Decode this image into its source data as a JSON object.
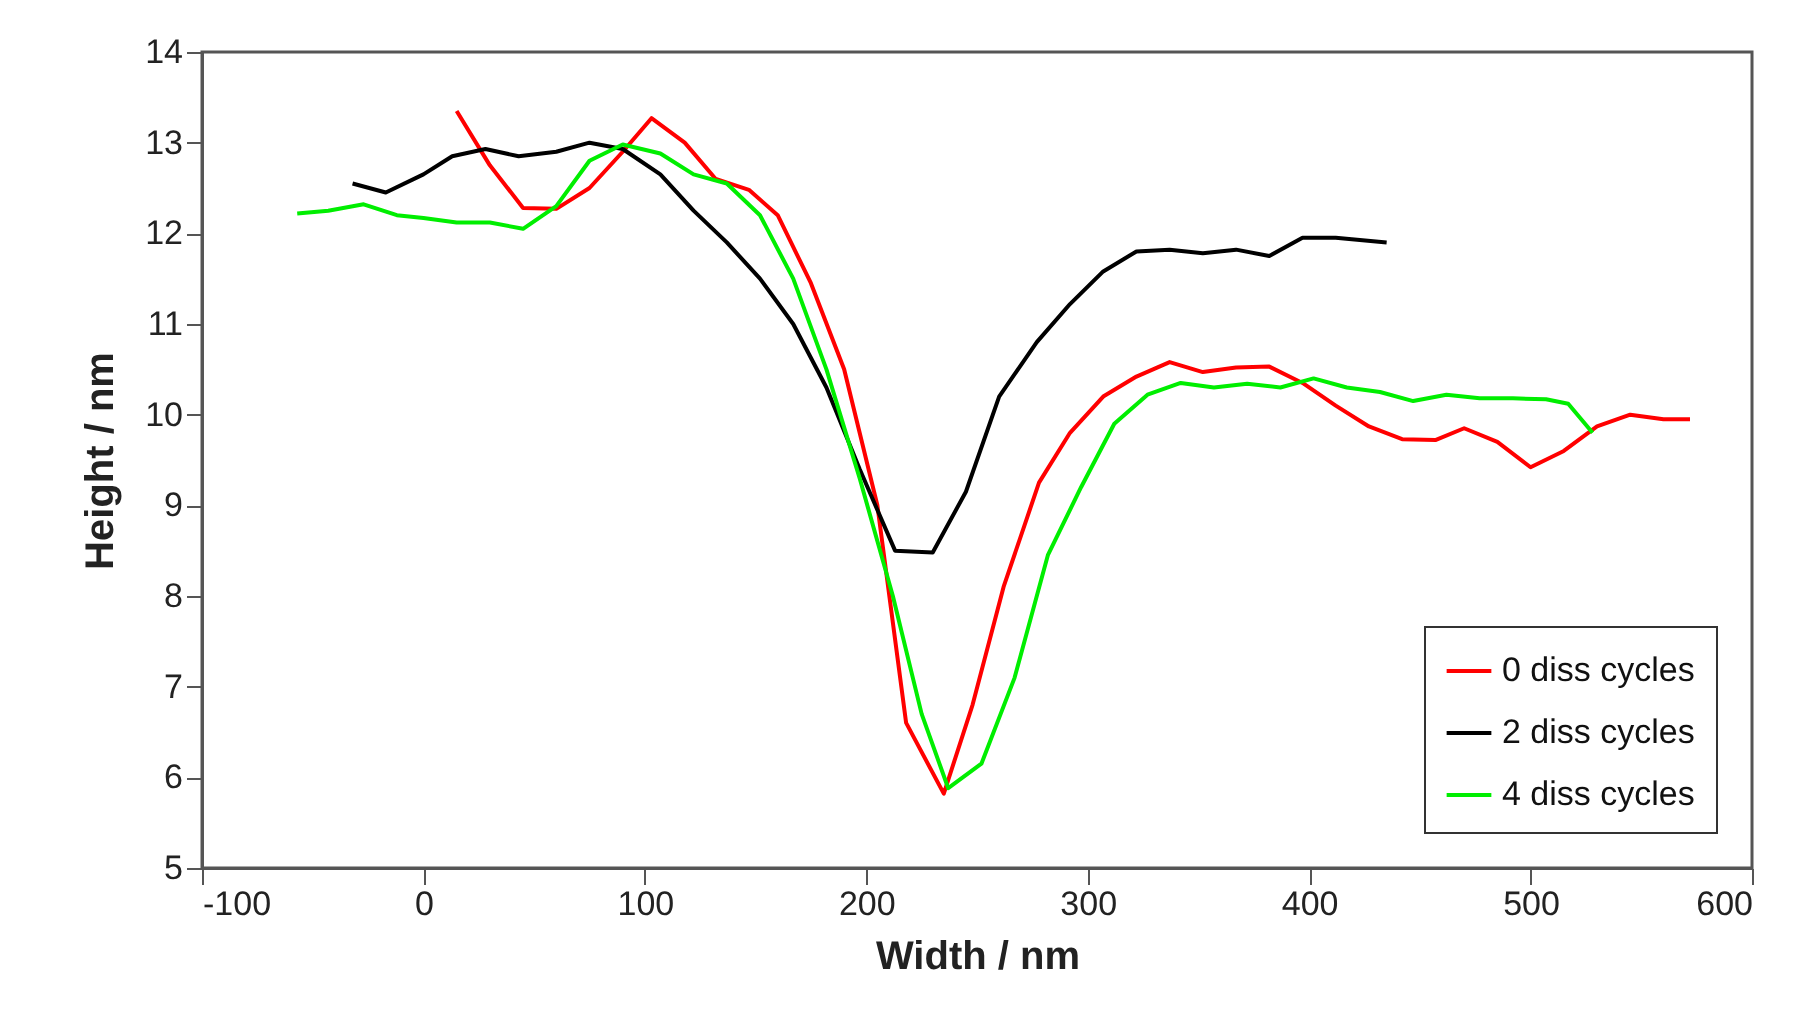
{
  "chart_data": {
    "type": "line",
    "xlabel": "Width / nm",
    "ylabel": "Height / nm",
    "xlim": [
      -100,
      600
    ],
    "xticks": [
      -100,
      0,
      100,
      200,
      300,
      400,
      500,
      600
    ],
    "ylim": [
      5,
      14
    ],
    "yticks": [
      5,
      6,
      7,
      8,
      9,
      10,
      11,
      12,
      13,
      14
    ],
    "grid": false,
    "legend": "bottom right",
    "marker": "none",
    "line_style": "solid",
    "series": [
      {
        "name": "0 diss cycles",
        "color": "#ff0000",
        "x": [
          15,
          30,
          45,
          60,
          75,
          90,
          103,
          118,
          132,
          147,
          160,
          175,
          190,
          205,
          218,
          235,
          248,
          262,
          278,
          292,
          307,
          322,
          337,
          352,
          367,
          382,
          397,
          412,
          427,
          442,
          457,
          470,
          485,
          500,
          515,
          530,
          545,
          560,
          572
        ],
        "values": [
          13.35,
          12.75,
          12.28,
          12.27,
          12.5,
          12.9,
          13.27,
          13.0,
          12.6,
          12.48,
          12.2,
          11.45,
          10.5,
          9.0,
          6.6,
          5.82,
          6.8,
          8.1,
          9.25,
          9.8,
          10.2,
          10.42,
          10.58,
          10.47,
          10.52,
          10.53,
          10.35,
          10.1,
          9.87,
          9.73,
          9.72,
          9.85,
          9.7,
          9.42,
          9.6,
          9.87,
          10.0,
          9.95,
          9.95
        ]
      },
      {
        "name": "2 diss cycles",
        "color": "#000000",
        "x": [
          -32,
          -17,
          0,
          13,
          28,
          43,
          60,
          75,
          90,
          107,
          122,
          137,
          152,
          167,
          182,
          197,
          213,
          230,
          245,
          260,
          277,
          292,
          307,
          322,
          337,
          352,
          367,
          382,
          397,
          412,
          435
        ],
        "values": [
          12.55,
          12.45,
          12.65,
          12.85,
          12.93,
          12.85,
          12.9,
          13.0,
          12.93,
          12.65,
          12.25,
          11.9,
          11.5,
          11.0,
          10.3,
          9.4,
          8.5,
          8.48,
          9.15,
          10.2,
          10.8,
          11.22,
          11.58,
          11.8,
          11.82,
          11.78,
          11.82,
          11.75,
          11.95,
          11.95,
          11.9
        ]
      },
      {
        "name": "4 diss cycles",
        "color": "#00ee00",
        "x": [
          -57,
          -43,
          -27,
          -12,
          0,
          15,
          30,
          45,
          60,
          75,
          90,
          107,
          122,
          137,
          152,
          167,
          182,
          197,
          212,
          225,
          237,
          252,
          267,
          282,
          297,
          312,
          327,
          342,
          357,
          372,
          387,
          402,
          417,
          432,
          447,
          462,
          477,
          492,
          507,
          517,
          528
        ],
        "values": [
          12.22,
          12.25,
          12.32,
          12.2,
          12.17,
          12.12,
          12.12,
          12.05,
          12.3,
          12.8,
          12.98,
          12.88,
          12.65,
          12.55,
          12.2,
          11.5,
          10.5,
          9.3,
          8.0,
          6.7,
          5.88,
          6.15,
          7.1,
          8.45,
          9.2,
          9.9,
          10.22,
          10.35,
          10.3,
          10.34,
          10.3,
          10.4,
          10.3,
          10.25,
          10.15,
          10.22,
          10.18,
          10.18,
          10.17,
          10.12,
          9.8
        ]
      }
    ]
  }
}
